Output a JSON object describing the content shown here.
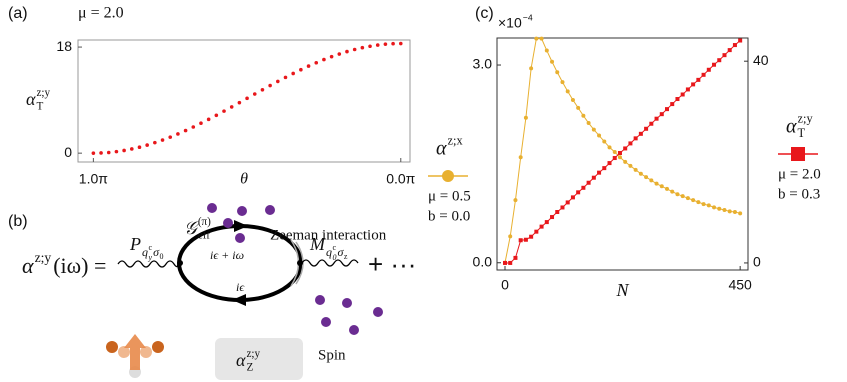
{
  "chart_data": [
    {
      "type": "scatter",
      "panel_label": "(a)",
      "title": "μ = 2.0",
      "xlabel": "θ",
      "ylabel": {
        "base": "α",
        "sup": "z;y",
        "sub": "T"
      },
      "x": [
        1.0,
        0.975,
        0.95,
        0.925,
        0.9,
        0.875,
        0.85,
        0.825,
        0.8,
        0.775,
        0.75,
        0.725,
        0.7,
        0.675,
        0.65,
        0.625,
        0.6,
        0.575,
        0.55,
        0.525,
        0.5,
        0.475,
        0.45,
        0.425,
        0.4,
        0.375,
        0.35,
        0.325,
        0.3,
        0.275,
        0.25,
        0.225,
        0.2,
        0.175,
        0.15,
        0.125,
        0.1,
        0.075,
        0.05,
        0.025,
        0.0
      ],
      "series": [
        {
          "color": "#e8171b",
          "values": [
            0,
            0.03,
            0.11,
            0.26,
            0.46,
            0.71,
            1.01,
            1.37,
            1.78,
            2.23,
            2.72,
            3.26,
            3.83,
            4.44,
            5.08,
            5.74,
            6.43,
            7.13,
            7.85,
            8.57,
            9.3,
            10.03,
            10.75,
            11.47,
            12.17,
            12.86,
            13.52,
            14.16,
            14.77,
            15.34,
            15.88,
            16.37,
            16.82,
            17.23,
            17.59,
            17.89,
            18.14,
            18.34,
            18.49,
            18.57,
            18.6
          ]
        }
      ],
      "xlim": [
        1.05,
        -0.03
      ],
      "ylim": [
        -1.5,
        19.2
      ],
      "xticks": [
        {
          "value": 1.0,
          "label": "1.0π"
        },
        {
          "value": 0.0,
          "label": "0.0π"
        }
      ],
      "yticks": [
        0,
        18
      ]
    },
    {
      "type": "line",
      "panel_label": "(c)",
      "xlabel": "N",
      "multiplier": {
        "base": "×10",
        "sup": "−4"
      },
      "x": [
        0,
        10,
        20,
        30,
        40,
        50,
        60,
        70,
        80,
        90,
        100,
        110,
        120,
        130,
        140,
        150,
        160,
        170,
        180,
        190,
        200,
        210,
        220,
        230,
        240,
        250,
        260,
        270,
        280,
        290,
        300,
        310,
        320,
        330,
        340,
        350,
        360,
        370,
        380,
        390,
        400,
        410,
        420,
        430,
        440,
        450
      ],
      "series": [
        {
          "name": {
            "base": "α",
            "sup": "z;x"
          },
          "params": [
            "μ = 0.5",
            "b = 0.0"
          ],
          "color": "#e8b030",
          "marker": "circle",
          "values": [
            0,
            0.4,
            0.95,
            1.6,
            2.2,
            2.95,
            3.4,
            3.4,
            3.22,
            3.05,
            2.89,
            2.74,
            2.6,
            2.47,
            2.35,
            2.23,
            2.12,
            2.02,
            1.93,
            1.84,
            1.75,
            1.68,
            1.6,
            1.53,
            1.47,
            1.41,
            1.35,
            1.3,
            1.25,
            1.2,
            1.16,
            1.12,
            1.08,
            1.04,
            1.01,
            0.98,
            0.95,
            0.92,
            0.89,
            0.87,
            0.84,
            0.82,
            0.8,
            0.78,
            0.77,
            0.75
          ]
        },
        {
          "name": {
            "base": "α",
            "sup": "z;y",
            "sub": "T"
          },
          "params": [
            "μ = 2.0",
            "b = 0.3"
          ],
          "color": "#e8171b",
          "marker": "square",
          "axis": "y2",
          "values": [
            0,
            0,
            1,
            4.5,
            4.6,
            5.2,
            6.2,
            7.2,
            8.1,
            9.1,
            10.1,
            11.0,
            12.0,
            13.0,
            14.0,
            14.9,
            15.9,
            16.9,
            17.9,
            18.8,
            19.8,
            20.8,
            21.8,
            22.7,
            23.7,
            24.7,
            25.6,
            26.6,
            27.6,
            28.6,
            29.5,
            30.5,
            31.5,
            32.5,
            33.4,
            34.4,
            35.4,
            36.3,
            37.3,
            38.3,
            39.3,
            40.2,
            41.2,
            42.2,
            43.2,
            44.1
          ]
        }
      ],
      "xlim": [
        -15.3,
        465
      ],
      "ylim": [
        -0.11,
        3.41
      ],
      "y2lim": [
        -1.4,
        44.6
      ],
      "xticks": [
        0,
        450
      ],
      "yticks": [
        {
          "value": 0,
          "label": "0.0"
        },
        {
          "value": 3,
          "label": "3.0"
        }
      ],
      "y2ticks": [
        0,
        40
      ]
    }
  ],
  "diagram": {
    "label": "(b)",
    "lhs": {
      "base": "α",
      "sup": "z;y",
      "tail": "(iω) ="
    },
    "p_vertex": {
      "base": "P",
      "sub": "q",
      "sub_sup": "c",
      "sub_sub": "y",
      "sub2": "σ",
      "sub2_sub": "0"
    },
    "propagator": {
      "base": "𝒢",
      "sup": "(π)",
      "sub": "eff"
    },
    "zeeman": "Zeeman interaction",
    "upper_energy": "iϵ + iω",
    "lower_energy": "iϵ",
    "m_vertex": {
      "base": "M",
      "sub": "q",
      "sub_sup": "c",
      "sub_sub": "0",
      "sub2": "σ",
      "sub2_sub": "z"
    },
    "continuation": "+ ···",
    "alpha_z": {
      "base": "α",
      "sup": "z;y",
      "sub": "Z"
    },
    "spin": "Spin"
  }
}
